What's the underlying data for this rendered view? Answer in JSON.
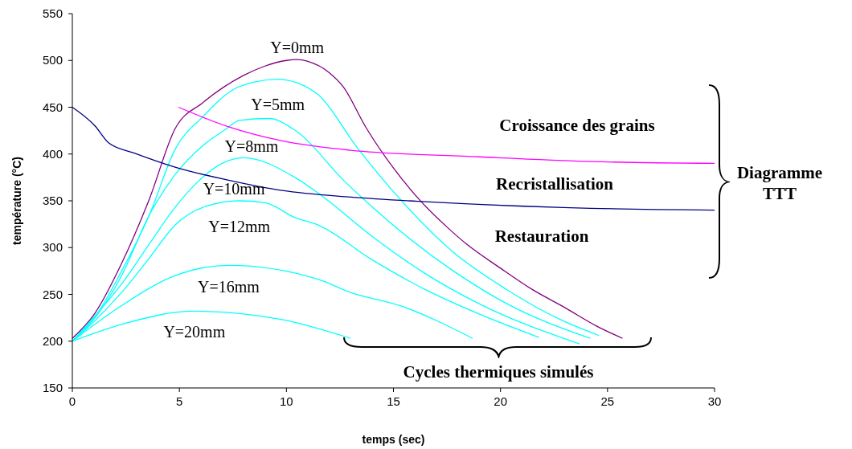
{
  "chart_data": {
    "type": "line",
    "xlabel": "temps (sec)",
    "ylabel": "température (°C)",
    "xlim": [
      0,
      30
    ],
    "ylim": [
      150,
      550
    ],
    "xticks": [
      0,
      5,
      10,
      15,
      20,
      25,
      30
    ],
    "yticks": [
      150,
      200,
      250,
      300,
      350,
      400,
      450,
      500,
      550
    ],
    "grid": false,
    "legend": false,
    "marker": "none",
    "line_style": "solid",
    "series": [
      {
        "name": "Y=0mm",
        "color": "#800080",
        "x": [
          0,
          1.06,
          2.3,
          3.6,
          4.8,
          6.1,
          8,
          9,
          10,
          10.5,
          11,
          12,
          12.65,
          13.7,
          15,
          16.3,
          17.5,
          18.4,
          20,
          21.5,
          23,
          24.5,
          25.7
        ],
        "values": [
          203,
          230,
          283,
          352,
          427,
          455,
          484,
          494,
          500,
          501,
          499,
          487,
          472,
          429,
          385,
          349,
          322,
          304,
          278,
          255,
          236,
          216,
          203
        ]
      },
      {
        "name": "Y=5mm",
        "color": "#00ffff",
        "x": [
          0,
          1.06,
          2.3,
          3.6,
          4.8,
          6.1,
          7.6,
          8.5,
          9.6,
          10.5,
          11.5,
          13.3,
          15.3,
          17.8,
          20.3,
          22.8,
          24.6
        ],
        "values": [
          200,
          226,
          275,
          335,
          405,
          440,
          470,
          477,
          480,
          476,
          463,
          407,
          352,
          295,
          255,
          223,
          206
        ]
      },
      {
        "name": "Y=8mm",
        "color": "#00ffff",
        "x": [
          0,
          1.06,
          2.3,
          3.6,
          4.8,
          6.1,
          7.2,
          7.8,
          9.2,
          10.3,
          12.8,
          15.3,
          17.8,
          20.3,
          24.2
        ],
        "values": [
          200,
          225,
          270,
          335,
          378,
          409,
          427,
          436,
          438,
          427,
          369,
          318,
          275,
          240,
          203
        ]
      },
      {
        "name": "Y=10mm",
        "color": "#00ffff",
        "x": [
          0,
          1.06,
          2.3,
          3.6,
          4.8,
          5.8,
          7,
          8,
          10.4,
          11.5,
          14,
          16.5,
          19,
          23.7
        ],
        "values": [
          200,
          227,
          261,
          304,
          343,
          369,
          390,
          396,
          375,
          358,
          312,
          272,
          240,
          197
        ]
      },
      {
        "name": "Y=12mm",
        "color": "#00ffff",
        "x": [
          0,
          1.06,
          2.3,
          3.6,
          4.8,
          6.1,
          7.8,
          9,
          10.4,
          11.5,
          14,
          16.5,
          19,
          21.8
        ],
        "values": [
          200,
          222,
          252,
          289,
          324,
          343,
          350,
          348,
          332,
          324,
          287,
          255,
          229,
          204
        ]
      },
      {
        "name": "Y=16mm",
        "color": "#00ffff",
        "x": [
          0,
          2.3,
          4.8,
          7.3,
          11.5,
          13,
          15.3,
          18.7
        ],
        "values": [
          200,
          238,
          270,
          281,
          266,
          252,
          238,
          203
        ]
      },
      {
        "name": "Y=20mm",
        "color": "#00ffff",
        "x": [
          0,
          2.3,
          5.7,
          9.8,
          13
        ],
        "values": [
          200,
          218,
          232,
          223,
          203
        ]
      },
      {
        "color": "#000080",
        "x": [
          0,
          1.06,
          1.69,
          2.9,
          4.8,
          7.3,
          9.8,
          13,
          16.5,
          24.2,
          30
        ],
        "values": [
          450,
          430,
          412,
          401,
          386,
          372,
          361,
          354,
          349,
          342,
          340
        ]
      },
      {
        "color": "#ff00ff",
        "x": [
          4.96,
          7.3,
          9.8,
          13,
          19,
          24.2,
          30
        ],
        "values": [
          450,
          429,
          414,
          404,
          397,
          392,
          390
        ]
      }
    ],
    "annotations": [
      "Croissance des grains",
      "Recristallisation",
      "Restauration",
      "Diagramme TTT",
      "Cycles thermiques simulés"
    ]
  }
}
